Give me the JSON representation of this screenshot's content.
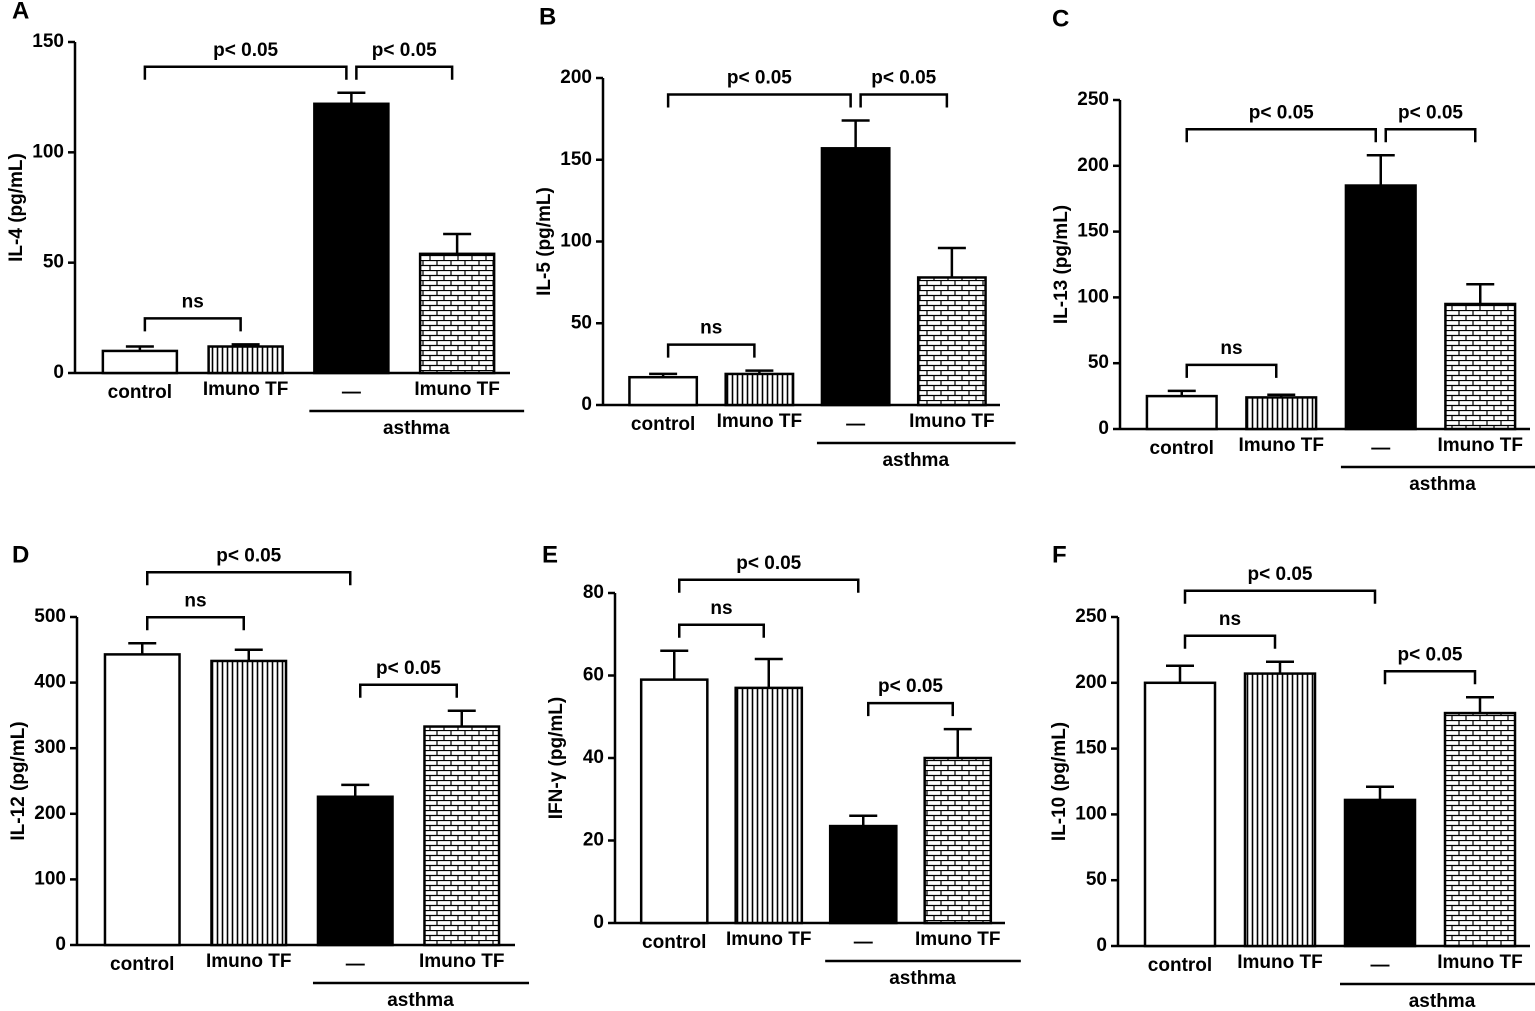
{
  "chart_data": [
    {
      "type": "bar",
      "panel": "A",
      "ylabel": "IL-4 (pg/mL)",
      "ylim": [
        0,
        150
      ],
      "yticks": [
        0,
        50,
        100,
        150
      ],
      "categories": [
        "control",
        "Imuno TF",
        "—",
        "Imuno TF"
      ],
      "values": [
        10,
        12,
        122,
        54
      ],
      "errors": [
        2,
        1,
        5,
        9
      ],
      "bar_styles": [
        "white",
        "vstripes",
        "black",
        "bricks"
      ],
      "group": {
        "label": "asthma",
        "categories": [
          2,
          3
        ]
      },
      "brackets": [
        {
          "groups": [
            0,
            1
          ],
          "label": "ns"
        },
        {
          "groups": [
            0,
            2
          ],
          "label": "p< 0.05"
        },
        {
          "groups": [
            2,
            3
          ],
          "label": "p< 0.05"
        }
      ]
    },
    {
      "type": "bar",
      "panel": "B",
      "ylabel": "IL-5 (pg/mL)",
      "ylim": [
        0,
        200
      ],
      "yticks": [
        0,
        50,
        100,
        150,
        200
      ],
      "categories": [
        "control",
        "Imuno TF",
        "—",
        "Imuno TF"
      ],
      "values": [
        17,
        19,
        157,
        78
      ],
      "errors": [
        2,
        2,
        17,
        18
      ],
      "bar_styles": [
        "white",
        "vstripes",
        "black",
        "bricks"
      ],
      "group": {
        "label": "asthma",
        "categories": [
          2,
          3
        ]
      },
      "brackets": [
        {
          "groups": [
            0,
            1
          ],
          "label": "ns"
        },
        {
          "groups": [
            0,
            2
          ],
          "label": "p< 0.05"
        },
        {
          "groups": [
            2,
            3
          ],
          "label": "p< 0.05"
        }
      ]
    },
    {
      "type": "bar",
      "panel": "C",
      "ylabel": "IL-13 (pg/mL)",
      "ylim": [
        0,
        250
      ],
      "yticks": [
        0,
        50,
        100,
        150,
        200,
        250
      ],
      "categories": [
        "control",
        "Imuno TF",
        "—",
        "Imuno TF"
      ],
      "values": [
        25,
        24,
        185,
        95
      ],
      "errors": [
        4,
        2,
        23,
        15
      ],
      "bar_styles": [
        "white",
        "vstripes",
        "black",
        "bricks"
      ],
      "group": {
        "label": "asthma",
        "categories": [
          2,
          3
        ]
      },
      "brackets": [
        {
          "groups": [
            0,
            1
          ],
          "label": "ns"
        },
        {
          "groups": [
            0,
            2
          ],
          "label": "p< 0.05"
        },
        {
          "groups": [
            2,
            3
          ],
          "label": "p< 0.05"
        }
      ]
    },
    {
      "type": "bar",
      "panel": "D",
      "ylabel": "IL-12 (pg/mL)",
      "ylim": [
        0,
        500
      ],
      "yticks": [
        0,
        100,
        200,
        300,
        400,
        500
      ],
      "categories": [
        "control",
        "Imuno TF",
        "—",
        "Imuno TF"
      ],
      "values": [
        443,
        433,
        226,
        333
      ],
      "errors": [
        17,
        17,
        18,
        24
      ],
      "bar_styles": [
        "white",
        "vstripes",
        "black",
        "bricks"
      ],
      "group": {
        "label": "asthma",
        "categories": [
          2,
          3
        ]
      },
      "brackets": [
        {
          "groups": [
            0,
            1
          ],
          "label": "ns"
        },
        {
          "groups": [
            0,
            2
          ],
          "label": "p< 0.05"
        },
        {
          "groups": [
            2,
            3
          ],
          "label": "p< 0.05"
        }
      ]
    },
    {
      "type": "bar",
      "panel": "E",
      "ylabel": "IFN-γ (pg/mL)",
      "ylim": [
        0,
        80
      ],
      "yticks": [
        0,
        20,
        40,
        60,
        80
      ],
      "categories": [
        "control",
        "Imuno TF",
        "—",
        "Imuno TF"
      ],
      "values": [
        59,
        57,
        23.5,
        40
      ],
      "errors": [
        7,
        7,
        2.5,
        7
      ],
      "bar_styles": [
        "white",
        "vstripes",
        "black",
        "bricks"
      ],
      "group": {
        "label": "asthma",
        "categories": [
          2,
          3
        ]
      },
      "brackets": [
        {
          "groups": [
            0,
            1
          ],
          "label": "ns"
        },
        {
          "groups": [
            0,
            2
          ],
          "label": "p< 0.05"
        },
        {
          "groups": [
            2,
            3
          ],
          "label": "p< 0.05"
        }
      ]
    },
    {
      "type": "bar",
      "panel": "F",
      "ylabel": "IL-10 (pg/mL)",
      "ylim": [
        0,
        250
      ],
      "yticks": [
        0,
        50,
        100,
        150,
        200,
        250
      ],
      "categories": [
        "control",
        "Imuno TF",
        "—",
        "Imuno TF"
      ],
      "values": [
        200,
        207,
        111,
        177
      ],
      "errors": [
        13,
        9,
        10,
        12
      ],
      "bar_styles": [
        "white",
        "vstripes",
        "black",
        "bricks"
      ],
      "group": {
        "label": "asthma",
        "categories": [
          2,
          3
        ]
      },
      "brackets": [
        {
          "groups": [
            0,
            1
          ],
          "label": "ns"
        },
        {
          "groups": [
            0,
            2
          ],
          "label": "p< 0.05"
        },
        {
          "groups": [
            2,
            3
          ],
          "label": "p< 0.05"
        }
      ]
    }
  ]
}
